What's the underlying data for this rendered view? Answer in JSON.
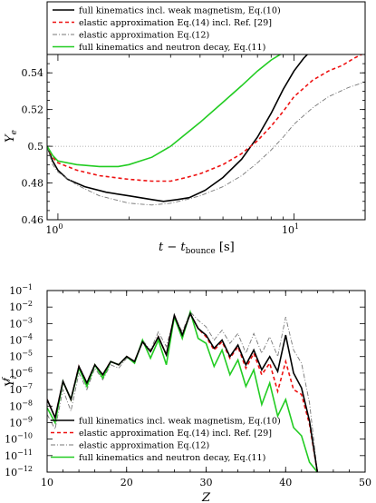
{
  "series_styles": [
    {
      "color": "#000000",
      "width": 1.6,
      "dash": ""
    },
    {
      "color": "#ee1111",
      "width": 1.6,
      "dash": "4 3"
    },
    {
      "color": "#777777",
      "width": 0.9,
      "dash": "5 2 1 2"
    },
    {
      "color": "#22cc22",
      "width": 1.6,
      "dash": ""
    }
  ],
  "chart_data": [
    {
      "type": "line",
      "xlabel_main": "t − t",
      "xlabel_sub": "bounce",
      "xlabel_unit": " [s]",
      "ylabel_main": "Y",
      "ylabel_sub": "e",
      "xscale": "log",
      "xlim": [
        0.9,
        20
      ],
      "ylim": [
        0.46,
        0.55
      ],
      "xticks": [
        {
          "v": 1,
          "label": "10",
          "sup": "0"
        },
        {
          "v": 10,
          "label": "10",
          "sup": "1"
        }
      ],
      "yticks": [
        0.46,
        0.48,
        0.5,
        0.52,
        0.54
      ],
      "ytick_labels": [
        "0.46",
        "0.48",
        "0.5",
        "0.52",
        "0.54"
      ],
      "reference_line_y": 0.5,
      "legend_position": "top",
      "series": [
        {
          "name": "full kinematics incl. weak magnetism, Eq.(10)",
          "x": [
            0.9,
            0.95,
            1.0,
            1.1,
            1.3,
            1.6,
            2.0,
            2.5,
            2.8,
            3.2,
            3.6,
            4.2,
            5.0,
            6.0,
            7.0,
            8.0,
            9.0,
            10.0,
            11.0,
            12.0
          ],
          "y": [
            0.5,
            0.492,
            0.487,
            0.482,
            0.478,
            0.475,
            0.473,
            0.471,
            0.47,
            0.471,
            0.472,
            0.476,
            0.483,
            0.493,
            0.505,
            0.518,
            0.531,
            0.541,
            0.548,
            0.553
          ]
        },
        {
          "name": "elastic approximation Eq.(14) incl. Ref. [29]",
          "x": [
            0.9,
            0.95,
            1.0,
            1.2,
            1.5,
            2.0,
            2.5,
            3.0,
            3.5,
            4.0,
            5.0,
            6.0,
            7.0,
            8.0,
            9.0,
            10.0,
            12.0,
            14.0,
            16.0,
            18.0,
            20.0
          ],
          "y": [
            0.5,
            0.494,
            0.491,
            0.487,
            0.484,
            0.482,
            0.481,
            0.481,
            0.483,
            0.485,
            0.49,
            0.496,
            0.503,
            0.511,
            0.519,
            0.527,
            0.536,
            0.541,
            0.544,
            0.548,
            0.551
          ]
        },
        {
          "name": "elastic approximation Eq.(12)",
          "x": [
            0.9,
            0.95,
            1.0,
            1.2,
            1.5,
            2.0,
            2.5,
            3.0,
            3.5,
            4.0,
            5.0,
            6.0,
            7.0,
            8.0,
            9.0,
            10.0,
            12.0,
            14.0,
            17.0,
            20.0
          ],
          "y": [
            0.5,
            0.49,
            0.486,
            0.479,
            0.473,
            0.469,
            0.468,
            0.469,
            0.471,
            0.473,
            0.478,
            0.484,
            0.491,
            0.498,
            0.505,
            0.512,
            0.521,
            0.527,
            0.532,
            0.535
          ]
        },
        {
          "name": "full kinematics and neutron decay, Eq.(11)",
          "x": [
            0.9,
            0.95,
            1.0,
            1.2,
            1.5,
            1.8,
            2.0,
            2.5,
            3.0,
            3.5,
            4.0,
            5.0,
            6.0,
            7.0,
            8.0,
            9.0
          ],
          "y": [
            0.5,
            0.495,
            0.492,
            0.49,
            0.489,
            0.489,
            0.49,
            0.494,
            0.5,
            0.507,
            0.513,
            0.524,
            0.533,
            0.541,
            0.547,
            0.551
          ]
        }
      ]
    },
    {
      "type": "line",
      "xlabel": "Z",
      "ylabel_main": "Y",
      "ylabel_sub": "i",
      "ylabel_sup": "f",
      "yscale": "log",
      "xlim": [
        10,
        50
      ],
      "ylim_exp": [
        -12,
        -1
      ],
      "xticks": [
        10,
        20,
        30,
        40,
        50
      ],
      "ytick_exps": [
        -12,
        -11,
        -10,
        -9,
        -8,
        -7,
        -6,
        -5,
        -4,
        -3,
        -2,
        -1
      ],
      "ytick_base": "10",
      "legend_position": "bottom-left",
      "x": [
        10,
        11,
        12,
        13,
        14,
        15,
        16,
        17,
        18,
        19,
        20,
        21,
        22,
        23,
        24,
        25,
        26,
        27,
        28,
        29,
        30,
        31,
        32,
        33,
        34,
        35,
        36,
        37,
        38,
        39,
        40,
        41,
        42,
        43,
        44
      ],
      "series": [
        {
          "name": "full kinematics incl. weak magnetism, Eq.(10)",
          "y_exp": [
            -7.6,
            -8.7,
            -6.5,
            -7.6,
            -5.6,
            -6.6,
            -5.5,
            -6.1,
            -5.3,
            -5.5,
            -5.0,
            -5.3,
            -4.1,
            -4.7,
            -3.8,
            -4.9,
            -2.5,
            -3.7,
            -2.4,
            -3.3,
            -3.7,
            -4.5,
            -4.0,
            -5.0,
            -4.3,
            -5.5,
            -4.6,
            -5.8,
            -5.0,
            -5.9,
            -3.7,
            -6.0,
            -6.9,
            -8.9,
            -12.0
          ]
        },
        {
          "name": "elastic approximation Eq.(14) incl. Ref. [29]",
          "y_exp": [
            -7.6,
            -8.7,
            -6.5,
            -7.6,
            -5.6,
            -6.6,
            -5.5,
            -6.1,
            -5.3,
            -5.5,
            -5.0,
            -5.3,
            -4.1,
            -4.7,
            -3.8,
            -4.9,
            -2.5,
            -3.7,
            -2.4,
            -3.3,
            -3.8,
            -4.6,
            -4.1,
            -5.1,
            -4.4,
            -5.7,
            -4.8,
            -6.1,
            -5.4,
            -7.1,
            -5.3,
            -7.0,
            -7.3,
            -9.1,
            -12.0
          ]
        },
        {
          "name": "elastic approximation Eq.(12)",
          "y_exp": [
            -8.5,
            -9.4,
            -7.0,
            -8.3,
            -6.0,
            -7.0,
            -5.7,
            -6.4,
            -5.5,
            -5.7,
            -5.1,
            -5.3,
            -4.0,
            -4.6,
            -3.5,
            -4.4,
            -2.6,
            -3.5,
            -2.3,
            -2.8,
            -3.2,
            -4.0,
            -3.4,
            -4.2,
            -3.6,
            -4.8,
            -3.6,
            -4.8,
            -3.8,
            -5.0,
            -2.6,
            -4.6,
            -5.4,
            -7.8,
            -12.0
          ]
        },
        {
          "name": "full kinematics and neutron decay, Eq.(11)",
          "y_exp": [
            -8.1,
            -9.0,
            -6.5,
            -7.6,
            -5.7,
            -6.8,
            -5.5,
            -6.3,
            -5.3,
            -5.5,
            -5.0,
            -5.4,
            -4.0,
            -5.1,
            -4.0,
            -5.5,
            -2.6,
            -3.9,
            -2.3,
            -3.9,
            -4.2,
            -5.6,
            -4.6,
            -6.1,
            -5.2,
            -6.8,
            -5.8,
            -7.9,
            -6.6,
            -8.6,
            -7.6,
            -9.3,
            -9.8,
            -11.4,
            -12.0
          ]
        }
      ]
    }
  ]
}
